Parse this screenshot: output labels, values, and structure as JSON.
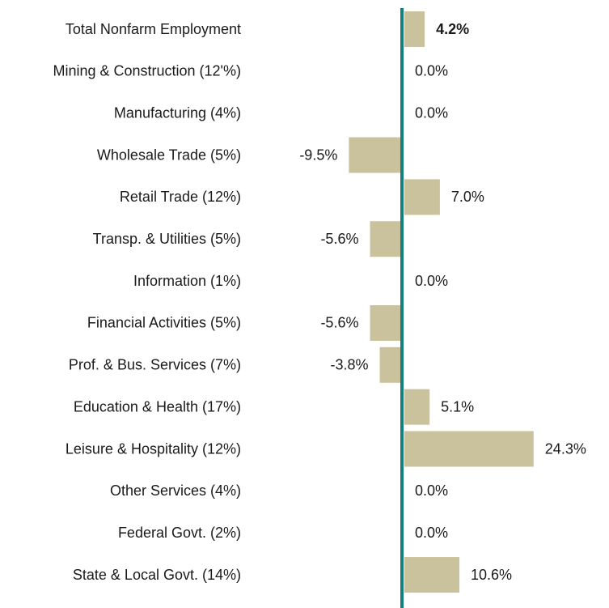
{
  "chart_data": {
    "type": "bar",
    "orientation": "horizontal",
    "categories": [
      "Total Nonfarm Employment",
      "Mining & Construction (12'%)",
      "Manufacturing (4%)",
      "Wholesale Trade (5%)",
      "Retail Trade (12%)",
      "Transp. & Utilities (5%)",
      "Information (1%)",
      "Financial Activities (5%)",
      "Prof. & Bus. Services (7%)",
      "Education & Health (17%)",
      "Leisure & Hospitality (12%)",
      "Other Services (4%)",
      "Federal Govt. (2%)",
      "State & Local Govt. (14%)"
    ],
    "values": [
      4.2,
      0.0,
      0.0,
      -9.5,
      7.0,
      -5.6,
      0.0,
      -5.6,
      -3.8,
      5.1,
      24.3,
      0.0,
      0.0,
      10.6
    ],
    "value_labels": [
      "4.2%",
      "0.0%",
      "0.0%",
      "-9.5%",
      "7.0%",
      "-5.6%",
      "0.0%",
      "-5.6%",
      "-3.8%",
      "5.1%",
      "24.3%",
      "0.0%",
      "0.0%",
      "10.6%"
    ],
    "color": "#c9c29d",
    "axis_color": "#157f7c"
  }
}
